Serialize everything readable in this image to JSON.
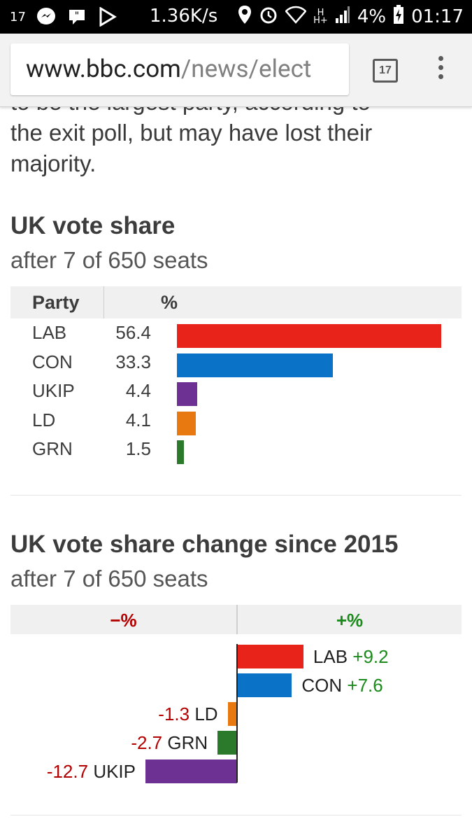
{
  "statusbar": {
    "notif_number": "17",
    "speed": "1.36K/s",
    "network_top": "H",
    "network_bottom": "H+",
    "battery": "4%",
    "time": "01:17"
  },
  "browser": {
    "url_domain": "www.bbc.com",
    "url_path": "/news/elect",
    "tab_count": "17"
  },
  "article": {
    "intro_partial": "to be the largest party, according to",
    "intro": "the exit poll, but may have lost their majority."
  },
  "vote_share": {
    "title": "UK vote share",
    "subtitle": "after 7 of 650 seats",
    "header_party": "Party",
    "header_pct": "%",
    "rows": [
      {
        "party": "LAB",
        "value": "56.4",
        "color": "#e8231a"
      },
      {
        "party": "CON",
        "value": "33.3",
        "color": "#0a73c8"
      },
      {
        "party": "UKIP",
        "value": "4.4",
        "color": "#6d3193"
      },
      {
        "party": "LD",
        "value": "4.1",
        "color": "#e87810"
      },
      {
        "party": "GRN",
        "value": "1.5",
        "color": "#2b7a2b"
      }
    ]
  },
  "vote_change": {
    "title": "UK vote share change since 2015",
    "subtitle": "after 7 of 650 seats",
    "header_neg": "−%",
    "header_pos": "+%",
    "rows": [
      {
        "party": "LAB",
        "value": "+9.2",
        "color": "#e8231a"
      },
      {
        "party": "CON",
        "value": "+7.6",
        "color": "#0a73c8"
      },
      {
        "party": "LD",
        "value": "-1.3",
        "color": "#e87810"
      },
      {
        "party": "GRN",
        "value": "-2.7",
        "color": "#2b7a2b"
      },
      {
        "party": "UKIP",
        "value": "-12.7",
        "color": "#6d3193"
      }
    ]
  },
  "chart_data": [
    {
      "type": "bar",
      "title": "UK vote share",
      "subtitle": "after 7 of 650 seats",
      "categories": [
        "LAB",
        "CON",
        "UKIP",
        "LD",
        "GRN"
      ],
      "values": [
        56.4,
        33.3,
        4.4,
        4.1,
        1.5
      ],
      "ylabel": "%",
      "colors": [
        "#e8231a",
        "#0a73c8",
        "#6d3193",
        "#e87810",
        "#2b7a2b"
      ]
    },
    {
      "type": "bar",
      "title": "UK vote share change since 2015",
      "subtitle": "after 7 of 650 seats",
      "categories": [
        "LAB",
        "CON",
        "LD",
        "GRN",
        "UKIP"
      ],
      "values": [
        9.2,
        7.6,
        -1.3,
        -2.7,
        -12.7
      ],
      "colors": [
        "#e8231a",
        "#0a73c8",
        "#e87810",
        "#2b7a2b",
        "#6d3193"
      ]
    }
  ]
}
